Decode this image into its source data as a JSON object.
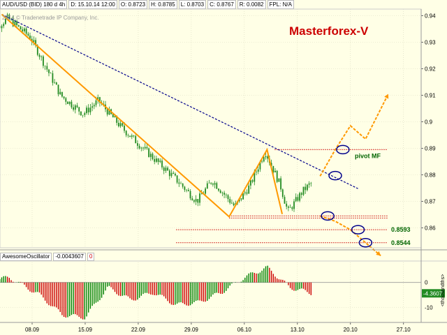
{
  "header": {
    "symbol": "AUD/USD (BID) 180 d 4h",
    "date": "D: 15.10.14 12:00",
    "open": "O: 0.8723",
    "high": "H: 0.8785",
    "low": "L: 0.8703",
    "close": "C: 0.8767",
    "range": "R: 0.0082",
    "fpl": "FPL: N/A"
  },
  "watermark": "2014 © Tradenetrade IP Company, Inc.",
  "brand_label": "Masterforex-V",
  "colors": {
    "background": "#ffffe6",
    "candles": "#228b22",
    "zigzag": "#ff9900",
    "trendline": "#00008b",
    "levels": "#cc0000",
    "circles": "#00008b",
    "brand": "#cc0000"
  },
  "oscillator": {
    "name": "AwesomeOscillator",
    "value": "-0.0043607",
    "flag": "0",
    "current_label": "-4.3607",
    "axis_unit": "<thousandths>"
  },
  "chart_data": [
    {
      "type": "candlestick",
      "title": "AUD/USD (BID) 180 d 4h",
      "x_tick_labels": [
        "08.09",
        "15.09",
        "22.09",
        "29.09",
        "06.10",
        "13.10",
        "20.10",
        "27.10"
      ],
      "y_tick_labels": [
        "0.94",
        "0.93",
        "0.92",
        "0.91",
        "0.9",
        "0.89",
        "0.88",
        "0.87",
        "0.86"
      ],
      "ylim": [
        0.8525,
        0.9425
      ],
      "approx_close_path": [
        {
          "date": "02.09",
          "price": 0.932
        },
        {
          "date": "05.09",
          "price": 0.939
        },
        {
          "date": "08.09",
          "price": 0.932
        },
        {
          "date": "12.09",
          "price": 0.91
        },
        {
          "date": "15.09",
          "price": 0.903
        },
        {
          "date": "17.09",
          "price": 0.908
        },
        {
          "date": "20.09",
          "price": 0.898
        },
        {
          "date": "24.09",
          "price": 0.887
        },
        {
          "date": "27.09",
          "price": 0.879
        },
        {
          "date": "30.09",
          "price": 0.87
        },
        {
          "date": "02.10",
          "price": 0.878
        },
        {
          "date": "05.10",
          "price": 0.868
        },
        {
          "date": "07.10",
          "price": 0.876
        },
        {
          "date": "09.10",
          "price": 0.889
        },
        {
          "date": "11.10",
          "price": 0.876
        },
        {
          "date": "12.10",
          "price": 0.866
        },
        {
          "date": "14.10",
          "price": 0.874
        },
        {
          "date": "15.10",
          "price": 0.8767
        }
      ],
      "zigzag": [
        {
          "date": "04.09",
          "price": 0.9405
        },
        {
          "date": "04.10",
          "price": 0.8642
        },
        {
          "date": "09.10",
          "price": 0.8895
        },
        {
          "date": "11.10",
          "price": 0.8652
        }
      ],
      "trendline": [
        {
          "date": "04.09",
          "price": 0.9405
        },
        {
          "date": "21.10",
          "price": 0.8748
        }
      ],
      "levels": [
        {
          "price": 0.8895,
          "label": "pivot MF"
        },
        {
          "price": 0.8645,
          "label": ""
        },
        {
          "price": 0.8593,
          "label": "0.8593"
        },
        {
          "price": 0.8544,
          "label": "0.8544"
        }
      ],
      "projection_up": [
        {
          "date": "16.10",
          "price": 0.8795
        },
        {
          "date": "18.10",
          "price": 0.8895
        },
        {
          "date": "20.10",
          "price": 0.8985
        },
        {
          "date": "22.10",
          "price": 0.8935
        },
        {
          "date": "25.10",
          "price": 0.9105
        }
      ],
      "projection_down": [
        {
          "date": "16.10",
          "price": 0.8645
        },
        {
          "date": "18.10",
          "price": 0.8625
        },
        {
          "date": "20.10",
          "price": 0.8593
        },
        {
          "date": "22.10",
          "price": 0.8544
        },
        {
          "date": "24.10",
          "price": 0.8495
        }
      ],
      "circles": [
        {
          "date": "19.10",
          "price": 0.8895
        },
        {
          "date": "18.10",
          "price": 0.8797
        },
        {
          "date": "17.10",
          "price": 0.8645
        },
        {
          "date": "21.10",
          "price": 0.8593
        },
        {
          "date": "22.10",
          "price": 0.8544
        }
      ]
    },
    {
      "type": "bar",
      "title": "AwesomeOscillator",
      "y_tick_labels": [
        "0",
        "-10"
      ],
      "ylim": [
        -16,
        8
      ],
      "x_tick_labels": [
        "08.09",
        "15.09",
        "22.09",
        "29.09",
        "06.10",
        "13.10",
        "20.10",
        "27.10"
      ],
      "approx_wave": [
        {
          "date": "02.09",
          "value": 0.5
        },
        {
          "date": "05.09",
          "value": 2
        },
        {
          "date": "09.09",
          "value": -5
        },
        {
          "date": "12.09",
          "value": -13
        },
        {
          "date": "15.09",
          "value": -14
        },
        {
          "date": "18.09",
          "value": -2
        },
        {
          "date": "21.09",
          "value": -7
        },
        {
          "date": "24.09",
          "value": -4
        },
        {
          "date": "27.09",
          "value": -9
        },
        {
          "date": "30.09",
          "value": -8
        },
        {
          "date": "03.10",
          "value": -4
        },
        {
          "date": "06.10",
          "value": 2
        },
        {
          "date": "09.10",
          "value": 6
        },
        {
          "date": "12.10",
          "value": -2
        },
        {
          "date": "15.10",
          "value": -4.3607
        }
      ]
    }
  ]
}
